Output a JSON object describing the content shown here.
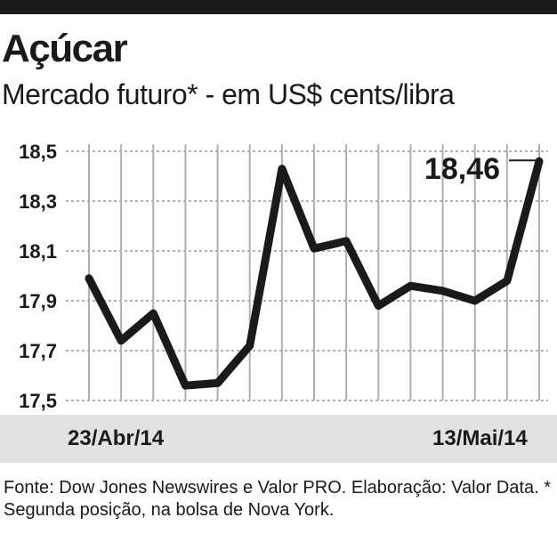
{
  "header": {
    "title": "Açúcar",
    "subtitle": "Mercado futuro* - em US$ cents/libra"
  },
  "footer": {
    "source": "Fonte: Dow Jones Newswires e Valor PRO. Elaboração: Valor Data. * Segunda posição, na bolsa de Nova York."
  },
  "colors": {
    "line": "#1a1a1a",
    "grid": "#b0b0b0",
    "band": "#e2e2e2"
  },
  "chart_data": {
    "type": "line",
    "title": "Açúcar",
    "subtitle": "Mercado futuro* - em US$ cents/libra",
    "xlabel": "",
    "ylabel": "",
    "ylim": [
      17.5,
      18.5
    ],
    "yticks": [
      "18,5",
      "18,3",
      "18,1",
      "17,9",
      "17,7",
      "17,5"
    ],
    "x_labels_shown": [
      "23/Abr/14",
      "13/Mai/14"
    ],
    "grid": true,
    "series": [
      {
        "values": [
          17.99,
          17.74,
          17.85,
          17.56,
          17.57,
          17.72,
          18.43,
          18.11,
          18.14,
          17.88,
          17.96,
          17.94,
          17.9,
          17.98,
          18.46
        ]
      }
    ],
    "annotations": [
      {
        "text": "18,46",
        "point_index": 14
      }
    ]
  }
}
